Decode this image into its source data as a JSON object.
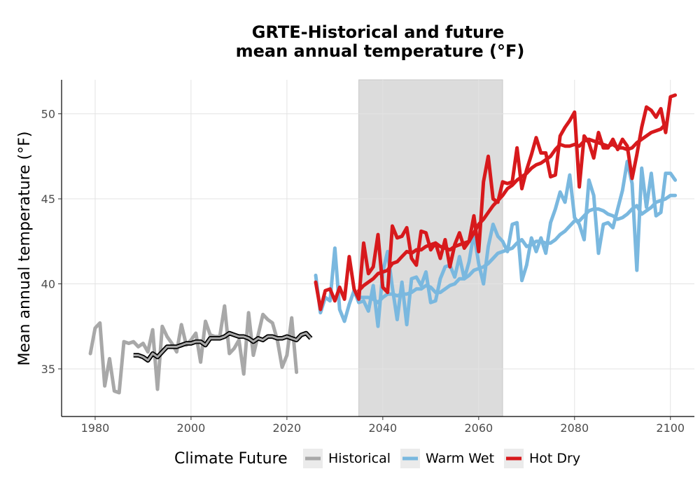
{
  "colors": {
    "historical": "#a8a8a8",
    "warm_wet": "#7ab8df",
    "hot_dry": "#d7191c",
    "running_mean": "#000000",
    "shade": "#dcdcdc",
    "grid": "#e3e3e3"
  },
  "chart_data": {
    "type": "line",
    "title_line1": "GRTE-Historical and future",
    "title_line2": "mean annual temperature (°F)",
    "xlabel": "",
    "ylabel": "Mean annual temperature (°F)",
    "xlim": [
      1973,
      2105
    ],
    "ylim": [
      32.2,
      52.0
    ],
    "x_ticks": [
      1980,
      2000,
      2020,
      2040,
      2060,
      2080,
      2100
    ],
    "y_ticks": [
      35,
      40,
      45,
      50
    ],
    "grid": true,
    "shaded_period": [
      2035,
      2065
    ],
    "legend": {
      "title": "Climate Future",
      "placement": "bottom",
      "entries": [
        "Historical",
        "Warm Wet",
        "Hot Dry"
      ]
    },
    "series": [
      {
        "key": "historical",
        "name": "Historical",
        "x_start": 1979,
        "values": [
          35.9,
          37.4,
          37.7,
          34.0,
          35.6,
          33.7,
          33.6,
          36.6,
          36.5,
          36.6,
          36.3,
          36.5,
          36.0,
          37.3,
          33.8,
          37.5,
          36.9,
          36.5,
          36.0,
          37.6,
          36.4,
          36.7,
          37.1,
          35.4,
          37.8,
          37.0,
          36.9,
          36.9,
          38.7,
          35.9,
          36.2,
          36.7,
          34.7,
          38.3,
          35.8,
          37.0,
          38.2,
          37.9,
          37.7,
          36.7,
          35.1,
          35.8,
          38.0,
          34.8
        ]
      },
      {
        "key": "historical",
        "name": "Historical running mean",
        "x_start": 1988,
        "values": [
          35.8,
          35.8,
          35.7,
          35.5,
          35.9,
          35.7,
          36.0,
          36.3,
          36.3,
          36.3,
          36.4,
          36.5,
          36.5,
          36.6,
          36.6,
          36.4,
          36.8,
          36.8,
          36.8,
          36.9,
          37.1,
          37.0,
          36.9,
          36.9,
          36.8,
          36.6,
          36.8,
          36.7,
          36.9,
          36.9,
          36.8,
          36.8,
          36.9,
          36.8,
          36.7,
          37.0,
          37.1,
          36.8
        ],
        "running_mean": true
      },
      {
        "key": "warm_wet",
        "name": "Warm Wet",
        "x_start": 2026,
        "values": [
          40.5,
          38.3,
          39.2,
          39.0,
          42.1,
          38.5,
          37.8,
          38.8,
          39.6,
          38.9,
          39.0,
          38.4,
          39.9,
          37.5,
          40.7,
          41.9,
          39.8,
          37.9,
          40.1,
          37.6,
          40.3,
          40.4,
          39.9,
          40.7,
          38.9,
          39.0,
          40.3,
          41.0,
          41.1,
          40.4,
          41.6,
          40.3,
          41.3,
          43.0,
          41.2,
          40.0,
          42.2,
          43.5,
          42.8,
          42.5,
          41.9,
          43.5,
          43.6,
          40.2,
          41.1,
          42.7,
          41.9,
          42.7,
          41.8,
          43.6,
          44.4,
          45.4,
          44.8,
          46.4,
          43.9,
          43.5,
          42.6,
          46.1,
          45.2,
          41.8,
          43.5,
          43.6,
          43.3,
          44.4,
          45.5,
          47.2,
          45.9,
          40.8,
          46.8,
          44.5,
          46.5,
          44.0,
          44.2,
          46.5,
          46.5,
          46.1
        ]
      },
      {
        "key": "warm_wet",
        "name": "Warm Wet running mean",
        "x_start": 2035,
        "values": [
          39.2,
          39.2,
          39.2,
          39.1,
          38.9,
          39.2,
          39.4,
          39.4,
          39.3,
          39.4,
          39.4,
          39.5,
          39.7,
          39.7,
          39.9,
          39.8,
          39.5,
          39.5,
          39.7,
          39.9,
          40.0,
          40.3,
          40.3,
          40.5,
          40.8,
          40.9,
          41.0,
          41.2,
          41.5,
          41.8,
          41.9,
          42.0,
          42.1,
          42.4,
          42.6,
          42.2,
          42.3,
          42.5,
          42.5,
          42.4,
          42.4,
          42.6,
          42.9,
          43.1,
          43.4,
          43.7,
          43.7,
          44.0,
          44.3,
          44.4,
          44.4,
          44.3,
          44.1,
          44.0,
          43.8,
          43.9,
          44.1,
          44.4,
          44.6,
          44.1,
          44.3,
          44.5,
          44.8,
          44.9,
          45.0,
          45.2,
          45.2
        ]
      },
      {
        "key": "hot_dry",
        "name": "Hot Dry",
        "x_start": 2026,
        "values": [
          40.1,
          38.5,
          39.6,
          39.7,
          39.0,
          39.8,
          39.1,
          41.6,
          39.7,
          39.1,
          42.4,
          40.6,
          41.0,
          42.9,
          39.8,
          39.5,
          43.4,
          42.7,
          42.8,
          43.3,
          41.5,
          41.1,
          43.1,
          43.0,
          42.0,
          42.4,
          41.5,
          42.6,
          41.0,
          42.3,
          43.0,
          42.1,
          42.5,
          44.0,
          41.9,
          46.0,
          47.5,
          45.0,
          44.8,
          46.0,
          45.9,
          46.0,
          48.0,
          45.6,
          46.7,
          47.6,
          48.6,
          47.7,
          47.7,
          46.3,
          46.4,
          48.7,
          49.2,
          49.6,
          50.1,
          45.7,
          48.7,
          48.3,
          47.4,
          48.9,
          48.0,
          48.0,
          48.5,
          47.9,
          48.5,
          48.1,
          46.2,
          47.6,
          49.2,
          50.4,
          50.2,
          49.8,
          50.3,
          48.9,
          51.0,
          51.1
        ]
      },
      {
        "key": "hot_dry",
        "name": "Hot Dry running mean",
        "x_start": 2035,
        "values": [
          39.6,
          39.9,
          40.1,
          40.3,
          40.6,
          40.7,
          40.8,
          41.2,
          41.3,
          41.6,
          41.9,
          41.8,
          42.0,
          42.0,
          42.2,
          42.3,
          42.4,
          42.2,
          42.1,
          42.0,
          42.2,
          42.3,
          42.4,
          42.5,
          43.0,
          43.5,
          43.8,
          44.2,
          44.6,
          44.9,
          45.2,
          45.6,
          45.8,
          46.1,
          46.3,
          46.5,
          46.8,
          47.0,
          47.1,
          47.3,
          47.5,
          47.9,
          48.2,
          48.1,
          48.1,
          48.2,
          48.1,
          48.4,
          48.5,
          48.4,
          48.3,
          48.2,
          48.1,
          48.2,
          48.0,
          48.0,
          47.9,
          48.0,
          48.3,
          48.5,
          48.7,
          48.9,
          49.0,
          49.1,
          49.4
        ]
      }
    ]
  }
}
